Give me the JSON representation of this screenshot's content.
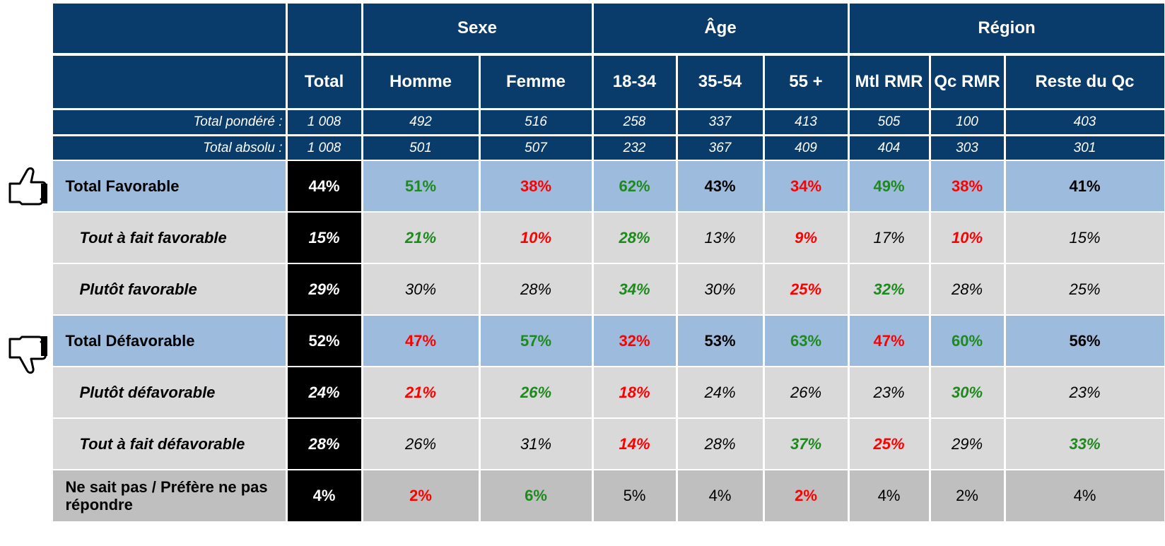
{
  "table": {
    "groups": [
      {
        "label": "Sexe",
        "span": 2
      },
      {
        "label": "Âge",
        "span": 3
      },
      {
        "label": "Région",
        "span": 3
      }
    ],
    "columns": [
      "Total",
      "Homme",
      "Femme",
      "18-34",
      "35-54",
      "55 +",
      "Mtl RMR",
      "Qc RMR",
      "Reste du Qc"
    ],
    "bases": [
      {
        "label": "Total pondéré :",
        "values": [
          "1 008",
          "492",
          "516",
          "258",
          "337",
          "413",
          "505",
          "100",
          "403"
        ]
      },
      {
        "label": "Total absolu :",
        "values": [
          "1 008",
          "501",
          "507",
          "232",
          "367",
          "409",
          "404",
          "303",
          "301"
        ]
      }
    ],
    "rows": [
      {
        "label": "Total Favorable",
        "kind": "total",
        "icon": "up",
        "values": [
          "44%",
          "51%",
          "38%",
          "62%",
          "43%",
          "34%",
          "49%",
          "38%",
          "41%"
        ],
        "tones": [
          "white",
          "green",
          "red",
          "green",
          "black",
          "red",
          "green",
          "red",
          "black"
        ]
      },
      {
        "label": "Tout à fait favorable",
        "kind": "sub",
        "values": [
          "15%",
          "21%",
          "10%",
          "28%",
          "13%",
          "9%",
          "17%",
          "10%",
          "15%"
        ],
        "tones": [
          "white",
          "green",
          "red",
          "green",
          "black",
          "red",
          "black",
          "red",
          "black"
        ]
      },
      {
        "label": "Plutôt favorable",
        "kind": "sub",
        "values": [
          "29%",
          "30%",
          "28%",
          "34%",
          "30%",
          "25%",
          "32%",
          "28%",
          "25%"
        ],
        "tones": [
          "white",
          "black",
          "black",
          "green",
          "black",
          "red",
          "green",
          "black",
          "black"
        ]
      },
      {
        "label": "Total Défavorable",
        "kind": "total",
        "icon": "down",
        "values": [
          "52%",
          "47%",
          "57%",
          "32%",
          "53%",
          "63%",
          "47%",
          "60%",
          "56%"
        ],
        "tones": [
          "white",
          "red",
          "green",
          "red",
          "black",
          "green",
          "red",
          "green",
          "black"
        ]
      },
      {
        "label": "Plutôt défavorable",
        "kind": "sub",
        "values": [
          "24%",
          "21%",
          "26%",
          "18%",
          "24%",
          "26%",
          "23%",
          "30%",
          "23%"
        ],
        "tones": [
          "white",
          "red",
          "green",
          "red",
          "black",
          "black",
          "black",
          "green",
          "black"
        ]
      },
      {
        "label": "Tout à fait défavorable",
        "kind": "sub",
        "values": [
          "28%",
          "26%",
          "31%",
          "14%",
          "28%",
          "37%",
          "25%",
          "29%",
          "33%"
        ],
        "tones": [
          "white",
          "black",
          "black",
          "red",
          "black",
          "green",
          "red",
          "black",
          "green"
        ]
      },
      {
        "label": "Ne sait pas / Préfère ne pas répondre",
        "kind": "other",
        "values": [
          "4%",
          "2%",
          "6%",
          "5%",
          "4%",
          "2%",
          "4%",
          "2%",
          "4%"
        ],
        "tones": [
          "white",
          "red",
          "green",
          "black",
          "black",
          "red",
          "black",
          "black",
          "black"
        ]
      }
    ]
  }
}
